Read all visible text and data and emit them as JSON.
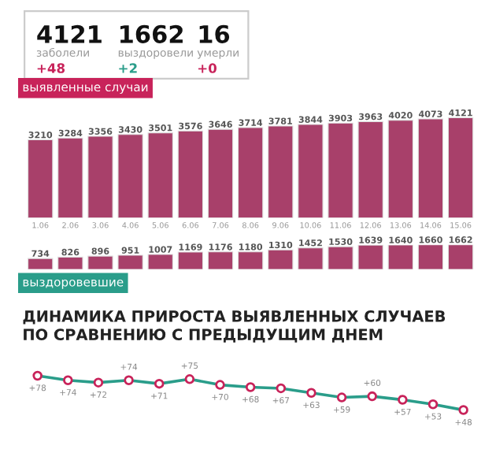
{
  "chart_data": [
    {
      "type": "other",
      "annotations": [
        "4121",
        "заболели",
        "+48",
        "1662",
        "выздоровели",
        "+2",
        "16",
        "умерли",
        "+0"
      ]
    },
    {
      "type": "bar",
      "title": "выявленные случаи",
      "categories": [
        "1.06",
        "2.06",
        "3.06",
        "4.06",
        "5.06",
        "6.06",
        "7.06",
        "8.06",
        "9.06",
        "10.06",
        "11.06",
        "12.06",
        "13.06",
        "14.06",
        "15.06"
      ],
      "series": [
        {
          "color": "#a8406a",
          "values": [
            3210,
            3284,
            3356,
            3430,
            3501,
            3576,
            3646,
            3714,
            3781,
            3844,
            3903,
            3963,
            4020,
            4073,
            4121
          ]
        }
      ],
      "data_labels": true
    },
    {
      "type": "bar",
      "title": "выздоровевшие",
      "categories": [
        null,
        null,
        null,
        null,
        null,
        null,
        null,
        null,
        null,
        null,
        null,
        null,
        null,
        null,
        null
      ],
      "series": [
        {
          "color": "#a8406a",
          "values": [
            734,
            826,
            896,
            951,
            1007,
            1169,
            1176,
            1180,
            1310,
            1452,
            1530,
            1639,
            1640,
            1660,
            1662
          ]
        }
      ],
      "data_labels": true
    },
    {
      "type": "line",
      "title": "ДИНАМИКА ПРИРОСТА ВЫЯВЛЕННЫХ СЛУЧАЕВ\nПО СРАВНЕНИЮ С ПРЕДЫДУЩИМ ДНЕМ",
      "categories": [
        null,
        null,
        null,
        null,
        null,
        null,
        null,
        null,
        null,
        null,
        null,
        null,
        null,
        null,
        null
      ],
      "series": [
        {
          "color": "#2a9d8a",
          "values": [
            78,
            74,
            72,
            74,
            71,
            75,
            70,
            68,
            67,
            63,
            59,
            60,
            57,
            53,
            48
          ],
          "value_labels": [
            "+78",
            "+74",
            "+72",
            "+74",
            "+71",
            "+75",
            "+70",
            "+68",
            "+67",
            "+63",
            "+59",
            "+60",
            "+57",
            "+53",
            "+48"
          ]
        }
      ],
      "marker": "circle"
    }
  ]
}
